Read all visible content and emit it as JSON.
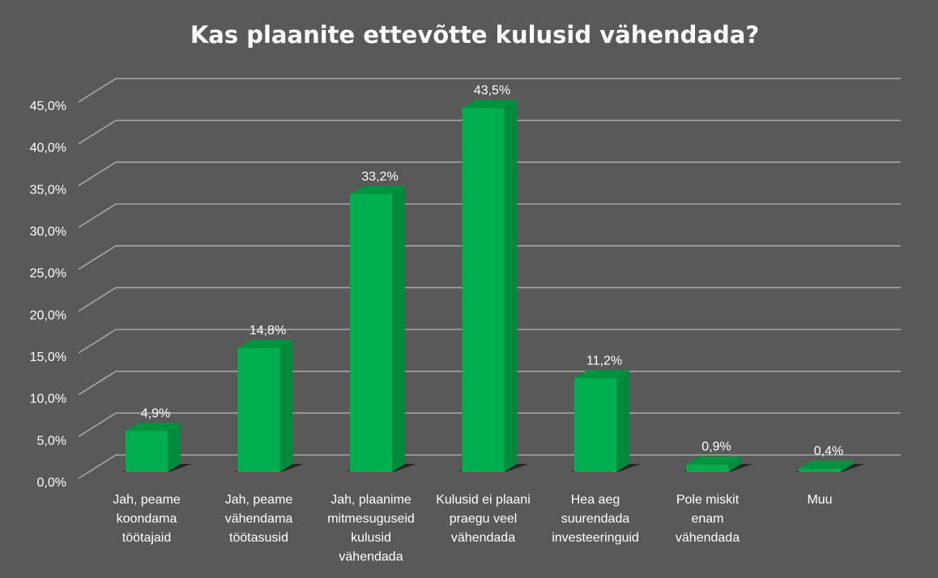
{
  "chart_data": {
    "type": "bar",
    "title": "Kas plaanite ettevõtte kulusid vähendada?",
    "categories": [
      "Jah, peame koondama töötajaid",
      "Jah, peame vähendama töötasusid",
      "Jah, plaanime mitmesuguseid kulusid vähendada",
      "Kulusid ei plaani praegu veel vähendada",
      "Hea aeg suurendada investeeringuid",
      "Pole miskit enam vähendada",
      "Muu"
    ],
    "category_lines": [
      [
        "Jah, peame",
        "koondama",
        "töötajaid"
      ],
      [
        "Jah, peame",
        "vähendama",
        "töötasusid"
      ],
      [
        "Jah, plaanime",
        "mitmesuguseid",
        "kulusid",
        "vähendada"
      ],
      [
        "Kulusid ei plaani",
        "praegu veel",
        "vähendada"
      ],
      [
        "Hea aeg",
        "suurendada",
        "investeeringuid"
      ],
      [
        "Pole miskit",
        "enam",
        "vähendada"
      ],
      [
        "Muu"
      ]
    ],
    "values": [
      4.9,
      14.8,
      33.2,
      43.5,
      11.2,
      0.9,
      0.4
    ],
    "data_labels": [
      "4,9%",
      "14,8%",
      "33,2%",
      "43,5%",
      "11,2%",
      "0,9%",
      "0,4%"
    ],
    "y_ticks": [
      0,
      5,
      10,
      15,
      20,
      25,
      30,
      35,
      40,
      45
    ],
    "y_tick_labels": [
      "0,0%",
      "5,0%",
      "10,0%",
      "15,0%",
      "20,0%",
      "25,0%",
      "30,0%",
      "35,0%",
      "40,0%",
      "45,0%"
    ],
    "ylim": [
      0,
      45
    ],
    "xlabel": "",
    "ylabel": "",
    "grid": true,
    "legend": "none",
    "colors": {
      "background": "#595959",
      "bar_front": "#00b050",
      "bar_side": "#008a3c",
      "bar_top": "#00943f",
      "gridline": "#a6a6a6",
      "text": "#ffffff",
      "shadow": "#1e1e1e"
    }
  }
}
